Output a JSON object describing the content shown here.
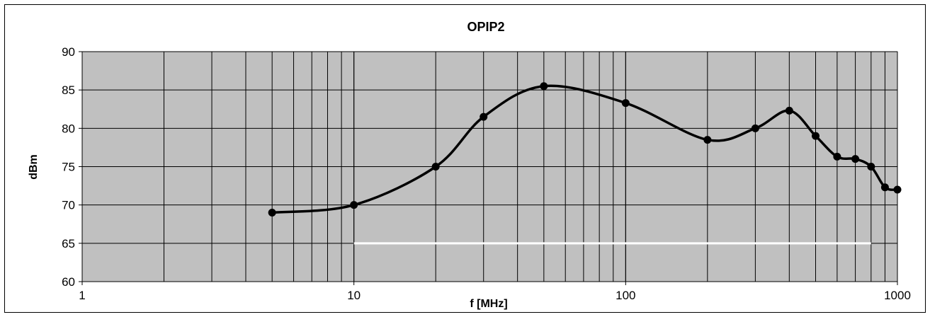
{
  "chart_data": {
    "type": "line",
    "title": "OPIP2",
    "xlabel": "f [MHz]",
    "ylabel": "dBm",
    "x_scale": "log",
    "xlim": [
      1,
      1000
    ],
    "ylim": [
      60,
      90
    ],
    "y_ticks": [
      "60",
      "65",
      "70",
      "75",
      "80",
      "85",
      "90"
    ],
    "x_ticks": [
      "1",
      "10",
      "100",
      "1000"
    ],
    "grid": true,
    "plot_background": "#c0c0c0",
    "line_color": "#000000",
    "reference_line": {
      "color": "#ffffff",
      "x": [
        10,
        800
      ],
      "y": 65
    },
    "series": [
      {
        "points": [
          {
            "x": 5,
            "y": 69
          },
          {
            "x": 10,
            "y": 70
          },
          {
            "x": 20,
            "y": 75
          },
          {
            "x": 30,
            "y": 81.5
          },
          {
            "x": 50,
            "y": 85.5
          },
          {
            "x": 100,
            "y": 83.3
          },
          {
            "x": 200,
            "y": 78.5
          },
          {
            "x": 300,
            "y": 80
          },
          {
            "x": 400,
            "y": 82.3
          },
          {
            "x": 500,
            "y": 79
          },
          {
            "x": 600,
            "y": 76.3
          },
          {
            "x": 700,
            "y": 76
          },
          {
            "x": 800,
            "y": 75
          },
          {
            "x": 900,
            "y": 72.3
          },
          {
            "x": 1000,
            "y": 72
          }
        ]
      }
    ]
  }
}
